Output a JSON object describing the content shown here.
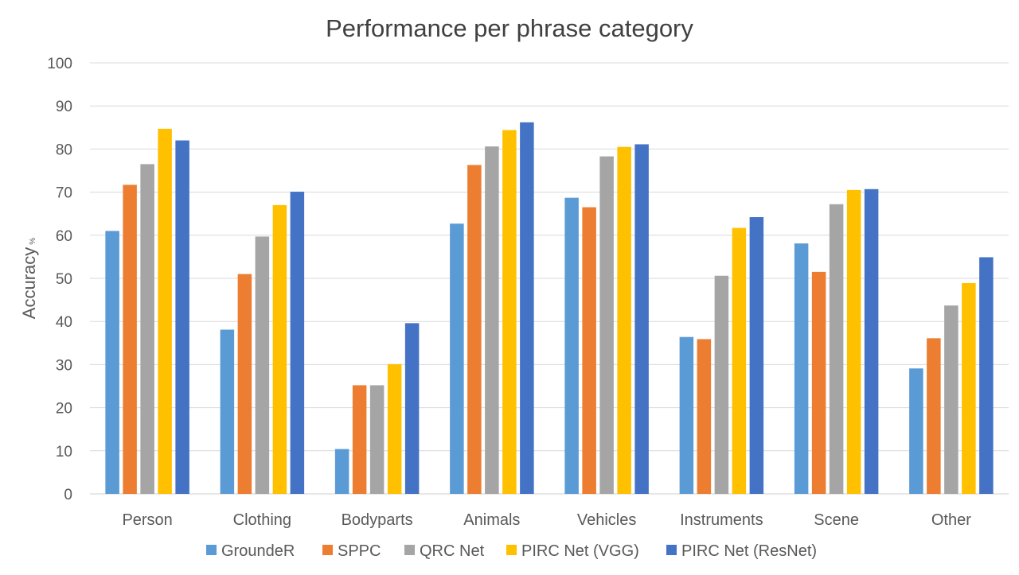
{
  "chart_data": {
    "type": "bar",
    "title": "Performance per phrase category",
    "ylabel": "Accuracy",
    "ylabel_unit": "%",
    "xlabel": "",
    "ylim": [
      0,
      100
    ],
    "yticks": [
      0,
      10,
      20,
      30,
      40,
      50,
      60,
      70,
      80,
      90,
      100
    ],
    "grid": true,
    "legend_position": "bottom",
    "categories": [
      "Person",
      "Clothing",
      "Bodyparts",
      "Animals",
      "Vehicles",
      "Instruments",
      "Scene",
      "Other"
    ],
    "series": [
      {
        "name": "GroundeR",
        "color": "#5b9bd5",
        "values": [
          61.0,
          38.1,
          10.4,
          62.7,
          68.7,
          36.4,
          58.1,
          29.1
        ]
      },
      {
        "name": "SPPC",
        "color": "#ed7d31",
        "values": [
          71.7,
          51.0,
          25.2,
          76.3,
          66.5,
          35.9,
          51.5,
          36.1
        ]
      },
      {
        "name": "QRC Net",
        "color": "#a5a5a5",
        "values": [
          76.5,
          59.7,
          25.2,
          80.6,
          78.3,
          50.6,
          67.2,
          43.7
        ]
      },
      {
        "name": "PIRC Net (VGG)",
        "color": "#ffc000",
        "values": [
          84.7,
          67.0,
          30.1,
          84.4,
          80.5,
          61.7,
          70.5,
          48.9
        ]
      },
      {
        "name": "PIRC Net (ResNet)",
        "color": "#4472c4",
        "values": [
          82.0,
          70.1,
          39.6,
          86.2,
          81.1,
          64.2,
          70.7,
          54.9
        ]
      }
    ]
  }
}
